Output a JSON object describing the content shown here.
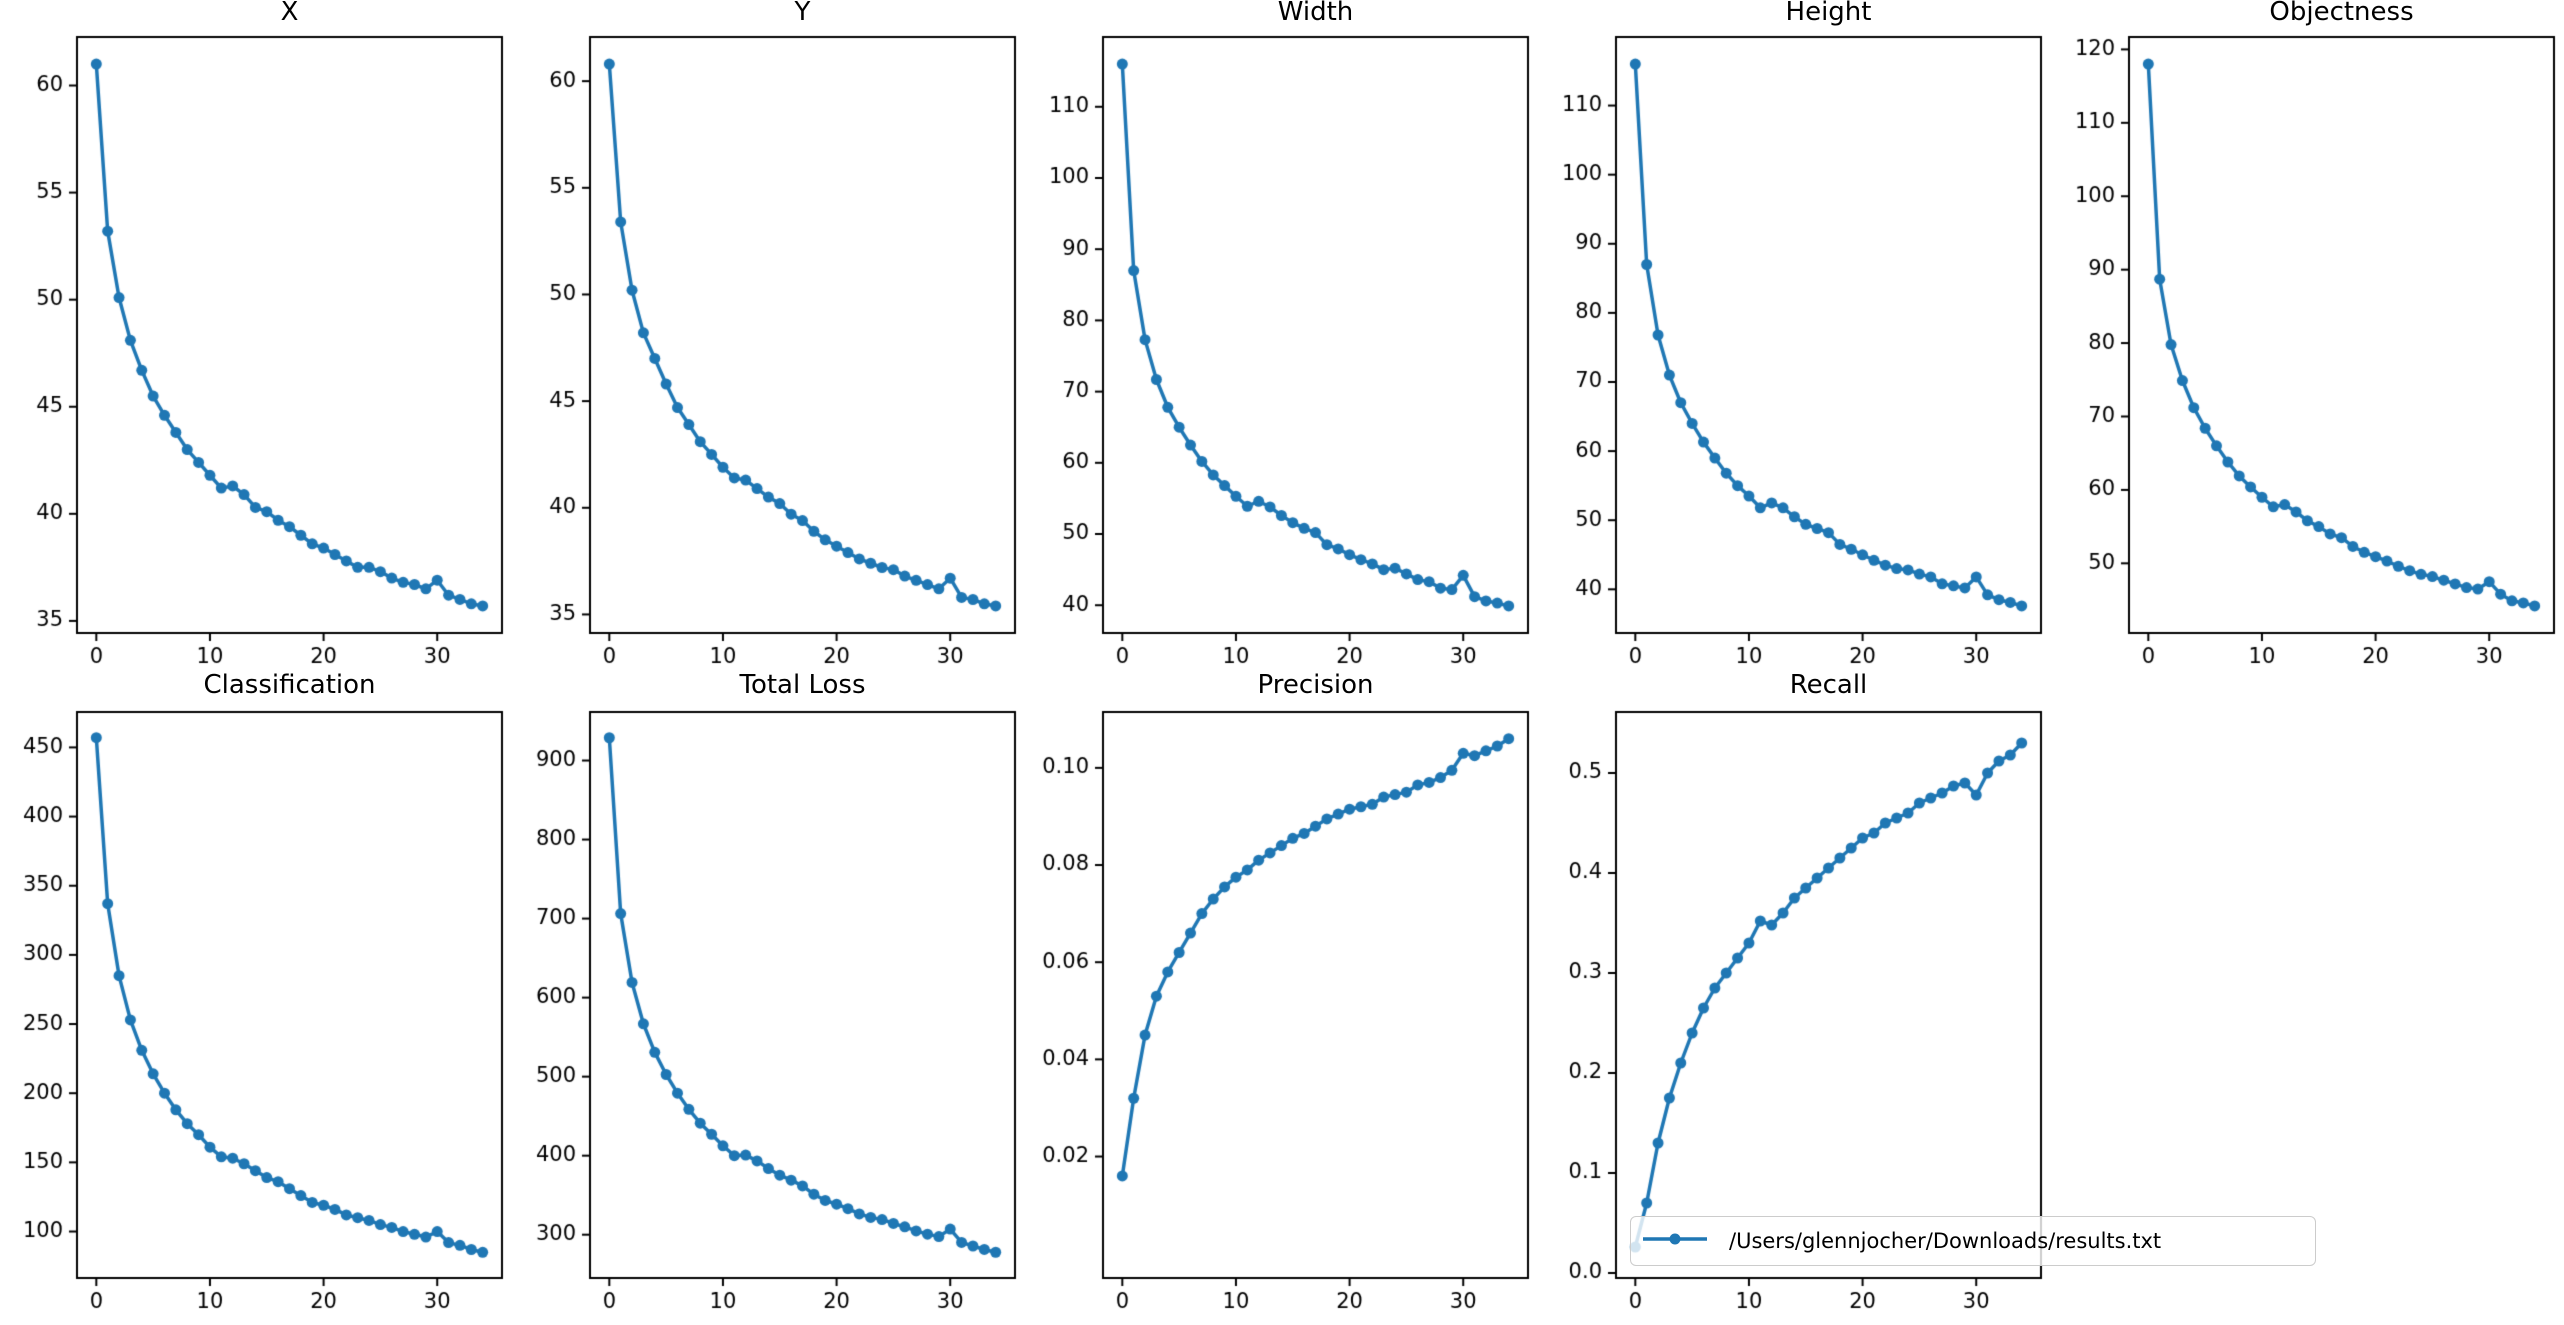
{
  "figure": {
    "background": "#ffffff",
    "line_color": "#1f77b4",
    "axis_color": "#000000",
    "marker": "circle"
  },
  "legend": {
    "entries": [
      {
        "label": "/Users/glennjocher/Downloads/results.txt",
        "color": "#1f77b4"
      }
    ],
    "location": "lower right of Recall subplot, overflowing right"
  },
  "chart_data": [
    {
      "id": "x",
      "type": "line",
      "title": "X",
      "row": 0,
      "col": 0,
      "x_range": [
        0,
        34
      ],
      "xlim": [
        -1.7,
        35.7
      ],
      "xticks": [
        "0",
        "10",
        "20",
        "30"
      ],
      "ylim": [
        34.435,
        62.265
      ],
      "yticks": [
        "35",
        "40",
        "45",
        "50",
        "55",
        "60"
      ],
      "values": [
        61.0,
        53.2,
        50.1,
        48.1,
        46.7,
        45.5,
        44.6,
        43.8,
        43.0,
        42.4,
        41.8,
        41.2,
        41.3,
        40.9,
        40.3,
        40.1,
        39.7,
        39.4,
        39.0,
        38.6,
        38.4,
        38.1,
        37.8,
        37.5,
        37.5,
        37.3,
        37.0,
        36.8,
        36.7,
        36.5,
        36.9,
        36.2,
        36.0,
        35.8,
        35.7
      ]
    },
    {
      "id": "y",
      "type": "line",
      "title": "Y",
      "row": 0,
      "col": 1,
      "x_range": [
        0,
        34
      ],
      "xlim": [
        -1.7,
        35.7
      ],
      "xticks": [
        "0",
        "10",
        "20",
        "30"
      ],
      "ylim": [
        34.13,
        62.07
      ],
      "yticks": [
        "35",
        "40",
        "45",
        "50",
        "55",
        "60"
      ],
      "values": [
        60.8,
        53.4,
        50.2,
        48.2,
        47.0,
        45.8,
        44.7,
        43.9,
        43.1,
        42.5,
        41.9,
        41.4,
        41.3,
        40.9,
        40.5,
        40.2,
        39.7,
        39.4,
        38.9,
        38.5,
        38.2,
        37.9,
        37.6,
        37.4,
        37.2,
        37.1,
        36.8,
        36.6,
        36.4,
        36.2,
        36.7,
        35.8,
        35.7,
        35.5,
        35.4
      ]
    },
    {
      "id": "width",
      "type": "line",
      "title": "Width",
      "row": 0,
      "col": 2,
      "x_range": [
        0,
        34
      ],
      "xlim": [
        -1.7,
        35.7
      ],
      "xticks": [
        "0",
        "10",
        "20",
        "30"
      ],
      "ylim": [
        36.1,
        119.8
      ],
      "yticks": [
        "40",
        "50",
        "60",
        "70",
        "80",
        "90",
        "100",
        "110"
      ],
      "values": [
        116.0,
        87.0,
        77.3,
        71.7,
        67.8,
        65.0,
        62.5,
        60.2,
        58.3,
        56.8,
        55.3,
        53.9,
        54.6,
        53.8,
        52.6,
        51.6,
        50.8,
        50.2,
        48.5,
        47.9,
        47.1,
        46.4,
        45.8,
        45.0,
        45.2,
        44.4,
        43.6,
        43.3,
        42.4,
        42.2,
        44.2,
        41.2,
        40.6,
        40.3,
        39.9
      ]
    },
    {
      "id": "height",
      "type": "line",
      "title": "Height",
      "row": 0,
      "col": 3,
      "x_range": [
        0,
        34
      ],
      "xlim": [
        -1.7,
        35.7
      ],
      "xticks": [
        "0",
        "10",
        "20",
        "30"
      ],
      "ylim": [
        33.68,
        119.92
      ],
      "yticks": [
        "40",
        "50",
        "60",
        "70",
        "80",
        "90",
        "100",
        "110"
      ],
      "values": [
        116.0,
        87.0,
        76.8,
        71.0,
        67.0,
        64.0,
        61.3,
        59.0,
        56.8,
        55.0,
        53.5,
        51.8,
        52.5,
        51.8,
        50.5,
        49.4,
        48.8,
        48.2,
        46.5,
        45.8,
        45.0,
        44.2,
        43.5,
        43.0,
        42.8,
        42.2,
        41.8,
        40.8,
        40.5,
        40.2,
        41.8,
        39.2,
        38.5,
        38.1,
        37.6
      ]
    },
    {
      "id": "objectness",
      "type": "line",
      "title": "Objectness",
      "row": 0,
      "col": 4,
      "x_range": [
        0,
        34
      ],
      "xlim": [
        -1.7,
        35.7
      ],
      "xticks": [
        "0",
        "10",
        "20",
        "30"
      ],
      "ylim": [
        40.51,
        121.69
      ],
      "yticks": [
        "50",
        "60",
        "70",
        "80",
        "90",
        "100",
        "110",
        "120"
      ],
      "values": [
        118.0,
        88.7,
        79.8,
        74.9,
        71.2,
        68.4,
        66.0,
        63.8,
        61.9,
        60.4,
        59.0,
        57.7,
        58.0,
        57.0,
        55.8,
        55.0,
        54.0,
        53.5,
        52.3,
        51.5,
        50.9,
        50.3,
        49.6,
        49.0,
        48.5,
        48.2,
        47.7,
        47.2,
        46.7,
        46.5,
        47.5,
        45.8,
        44.9,
        44.6,
        44.2
      ]
    },
    {
      "id": "classification",
      "type": "line",
      "title": "Classification",
      "row": 1,
      "col": 0,
      "x_range": [
        0,
        34
      ],
      "xlim": [
        -1.7,
        35.7
      ],
      "xticks": [
        "0",
        "10",
        "20",
        "30"
      ],
      "ylim": [
        66.4,
        475.6
      ],
      "yticks": [
        "100",
        "150",
        "200",
        "250",
        "300",
        "350",
        "400",
        "450"
      ],
      "values": [
        457,
        337,
        285,
        253,
        231,
        214,
        200,
        188,
        178,
        170,
        161,
        154,
        153,
        149,
        144,
        139,
        136,
        131,
        126,
        121,
        119,
        116,
        112,
        110,
        108,
        105,
        103,
        100,
        98,
        96,
        100,
        92,
        90,
        87,
        85
      ]
    },
    {
      "id": "total-loss",
      "type": "line",
      "title": "Total Loss",
      "row": 1,
      "col": 1,
      "x_range": [
        0,
        34
      ],
      "xlim": [
        -1.7,
        35.7
      ],
      "xticks": [
        "0",
        "10",
        "20",
        "30"
      ],
      "ylim": [
        245.2,
        961.4
      ],
      "yticks": [
        "300",
        "400",
        "500",
        "600",
        "700",
        "800",
        "900"
      ],
      "values": [
        928.8,
        706.3,
        619.2,
        566.9,
        530.7,
        502.7,
        479.1,
        458.7,
        441.1,
        427.1,
        412.5,
        400.0,
        400.7,
        393.4,
        383.7,
        375.3,
        369.0,
        361.7,
        351.2,
        343.3,
        338.6,
        332.9,
        326.3,
        321.9,
        319.2,
        314.2,
        309.9,
        304.7,
        300.7,
        297.6,
        307.1,
        290.2,
        285.7,
        281.3,
        277.8
      ]
    },
    {
      "id": "precision",
      "type": "line",
      "title": "Precision",
      "row": 1,
      "col": 2,
      "x_range": [
        0,
        34
      ],
      "xlim": [
        -1.7,
        35.7
      ],
      "xticks": [
        "0",
        "10",
        "20",
        "30"
      ],
      "ylim": [
        -0.005,
        0.1115
      ],
      "yticks": [
        "0.02",
        "0.04",
        "0.06",
        "0.08",
        "0.10"
      ],
      "values": [
        0.016,
        0.032,
        0.045,
        0.053,
        0.058,
        0.062,
        0.066,
        0.07,
        0.073,
        0.0755,
        0.0775,
        0.079,
        0.081,
        0.0825,
        0.084,
        0.0855,
        0.0865,
        0.088,
        0.0895,
        0.0905,
        0.0915,
        0.092,
        0.0925,
        0.094,
        0.0945,
        0.095,
        0.0965,
        0.097,
        0.098,
        0.0995,
        0.103,
        0.1025,
        0.1035,
        0.1045,
        0.106
      ]
    },
    {
      "id": "recall",
      "type": "line",
      "title": "Recall",
      "row": 1,
      "col": 3,
      "has_legend": true,
      "x_range": [
        0,
        34
      ],
      "xlim": [
        -1.7,
        35.7
      ],
      "xticks": [
        "0",
        "10",
        "20",
        "30"
      ],
      "ylim": [
        -0.005,
        0.561
      ],
      "yticks": [
        "0.0",
        "0.1",
        "0.2",
        "0.3",
        "0.4",
        "0.5"
      ],
      "values": [
        0.026,
        0.07,
        0.13,
        0.175,
        0.21,
        0.24,
        0.265,
        0.285,
        0.3,
        0.315,
        0.33,
        0.352,
        0.348,
        0.36,
        0.375,
        0.385,
        0.395,
        0.405,
        0.415,
        0.425,
        0.435,
        0.44,
        0.45,
        0.455,
        0.46,
        0.47,
        0.475,
        0.48,
        0.487,
        0.49,
        0.478,
        0.5,
        0.512,
        0.518,
        0.53
      ]
    }
  ]
}
